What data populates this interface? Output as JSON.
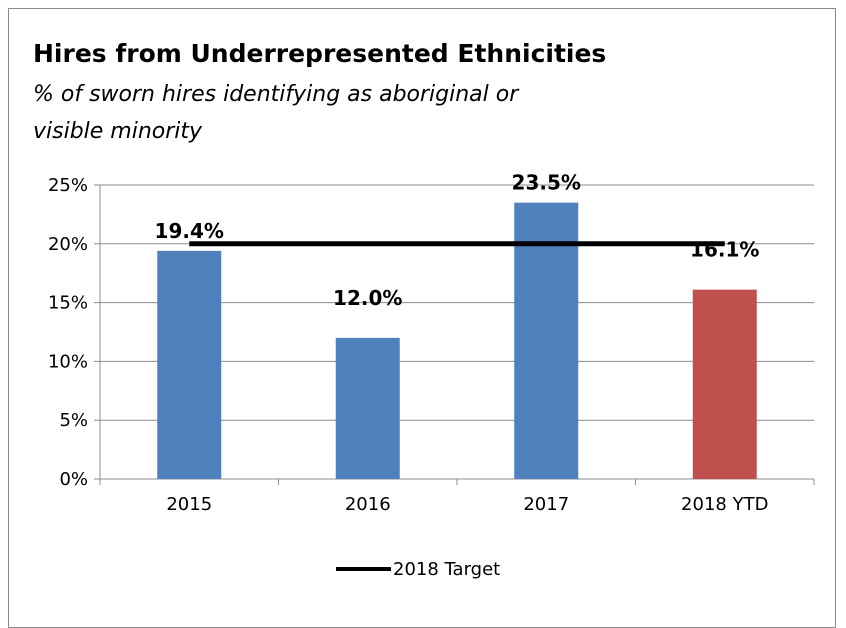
{
  "chart_data": {
    "type": "bar",
    "title": "Hires from Underrepresented Ethnicities",
    "subtitle_lines": [
      "% of sworn hires identifying as aboriginal or",
      "visible minority"
    ],
    "categories": [
      "2015",
      "2016",
      "2017",
      "2018 YTD"
    ],
    "values": [
      19.4,
      12.0,
      23.5,
      16.1
    ],
    "data_labels": [
      "19.4%",
      "12.0%",
      "23.5%",
      "16.1%"
    ],
    "bar_colors": [
      "#4f81bd",
      "#4f81bd",
      "#4f81bd",
      "#c0504d"
    ],
    "ylim": [
      0,
      25
    ],
    "yticks": [
      0,
      5,
      10,
      15,
      20,
      25
    ],
    "ytick_labels": [
      "0%",
      "5%",
      "10%",
      "15%",
      "20%",
      "25%"
    ],
    "grid": true,
    "target": {
      "name": "2018 Target",
      "value": 20,
      "color": "#000000"
    },
    "legend_position": "bottom"
  }
}
